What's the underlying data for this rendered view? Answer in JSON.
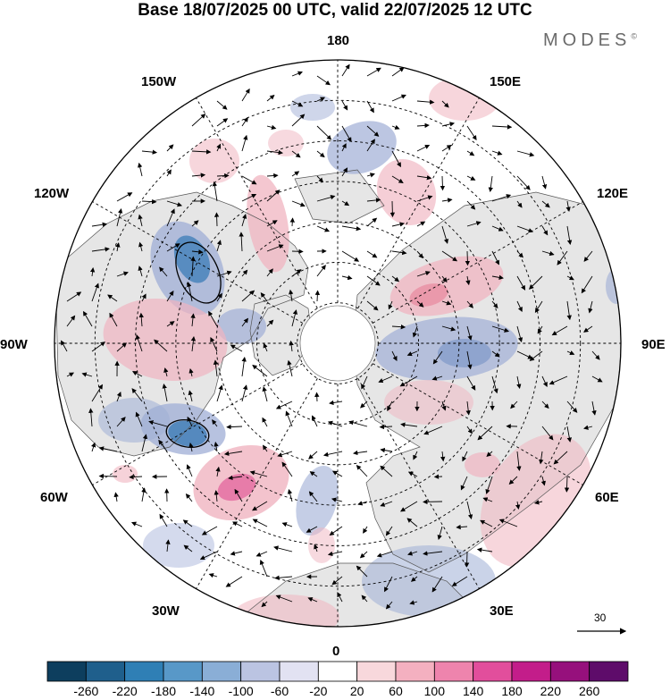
{
  "title": "Base 18/07/2025 00 UTC, valid 22/07/2025 12 UTC",
  "brand": {
    "name": "MODES",
    "mark": "©"
  },
  "map": {
    "projection": "north-polar-stereographic",
    "longitude_labels": [
      "180",
      "150E",
      "120E",
      "90E",
      "60E",
      "30E",
      "0",
      "30W",
      "60W",
      "90W",
      "120W",
      "150W"
    ],
    "latitude_circles_deg": [
      80,
      70,
      60,
      50,
      40,
      30,
      20
    ],
    "vector_reference": {
      "value": "30"
    }
  },
  "colorbar": {
    "ticks": [
      "-260",
      "-220",
      "-180",
      "-140",
      "-100",
      "-60",
      "-20",
      "20",
      "60",
      "100",
      "140",
      "180",
      "220",
      "260"
    ],
    "colors": [
      "#0d3e5e",
      "#1f5f8c",
      "#2f7fb5",
      "#5898c8",
      "#8aaed6",
      "#bbc4e2",
      "#e2e2f2",
      "#ffffff",
      "#f8d8dc",
      "#f4b0c0",
      "#ee84ad",
      "#e24e9c",
      "#c31d8a",
      "#96107c",
      "#5e0c6a"
    ]
  },
  "anomaly_colors": {
    "negative": "#9faed6",
    "strong_negative": "#4f86bc",
    "positive": "#f0b4c0",
    "strong_positive": "#e36aa0",
    "land": "#e6e6e6"
  }
}
